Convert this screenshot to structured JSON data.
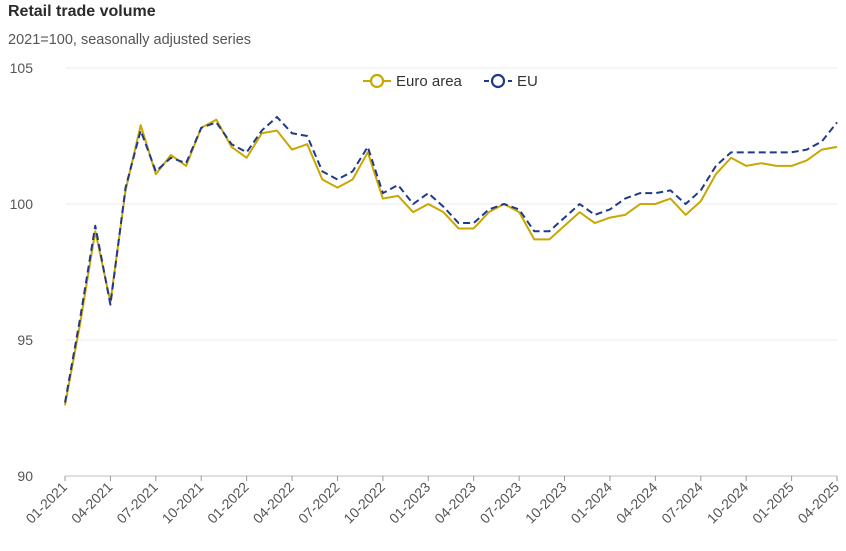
{
  "title": "Retail trade volume",
  "subtitle": "2021=100, seasonally adjusted series",
  "chart_data": {
    "type": "line",
    "title": "Retail trade volume",
    "subtitle": "2021=100, seasonally adjusted series",
    "ylim": [
      90,
      105
    ],
    "yticks": [
      90,
      95,
      100,
      105
    ],
    "grid": true,
    "legend_position": "top-center",
    "x_tick_labels": [
      "01-2021",
      "04-2021",
      "07-2021",
      "10-2021",
      "01-2022",
      "04-2022",
      "07-2022",
      "10-2022",
      "01-2023",
      "04-2023",
      "07-2023",
      "10-2023",
      "01-2024",
      "04-2024",
      "07-2024",
      "10-2024",
      "01-2025",
      "04-2025"
    ],
    "x": [
      "01-2021",
      "02-2021",
      "03-2021",
      "04-2021",
      "05-2021",
      "06-2021",
      "07-2021",
      "08-2021",
      "09-2021",
      "10-2021",
      "11-2021",
      "12-2021",
      "01-2022",
      "02-2022",
      "03-2022",
      "04-2022",
      "05-2022",
      "06-2022",
      "07-2022",
      "08-2022",
      "09-2022",
      "10-2022",
      "11-2022",
      "12-2022",
      "01-2023",
      "02-2023",
      "03-2023",
      "04-2023",
      "05-2023",
      "06-2023",
      "07-2023",
      "08-2023",
      "09-2023",
      "10-2023",
      "11-2023",
      "12-2023",
      "01-2024",
      "02-2024",
      "03-2024",
      "04-2024",
      "05-2024",
      "06-2024",
      "07-2024",
      "08-2024",
      "09-2024",
      "10-2024",
      "11-2024",
      "12-2024",
      "01-2025",
      "02-2025",
      "03-2025",
      "04-2025"
    ],
    "series": [
      {
        "name": "Euro area",
        "color": "#C9A700",
        "style": "solid",
        "values": [
          92.6,
          95.6,
          99.0,
          96.4,
          100.5,
          102.9,
          101.1,
          101.8,
          101.4,
          102.8,
          103.1,
          102.1,
          101.7,
          102.6,
          102.7,
          102.0,
          102.2,
          100.9,
          100.6,
          100.9,
          101.9,
          100.2,
          100.3,
          99.7,
          100.0,
          99.7,
          99.1,
          99.1,
          99.7,
          100.0,
          99.7,
          98.7,
          98.7,
          99.2,
          99.7,
          99.3,
          99.5,
          99.6,
          100.0,
          100.0,
          100.2,
          99.6,
          100.1,
          101.1,
          101.7,
          101.4,
          101.5,
          101.4,
          101.4,
          101.6,
          102.0,
          102.1
        ]
      },
      {
        "name": "EU",
        "color": "#1F3A8A",
        "style": "dashed",
        "values": [
          92.7,
          95.8,
          99.2,
          96.3,
          100.6,
          102.7,
          101.2,
          101.7,
          101.5,
          102.8,
          103.0,
          102.2,
          101.9,
          102.7,
          103.2,
          102.6,
          102.5,
          101.2,
          100.9,
          101.2,
          102.1,
          100.4,
          100.7,
          100.0,
          100.4,
          99.9,
          99.3,
          99.3,
          99.8,
          100.0,
          99.8,
          99.0,
          99.0,
          99.5,
          100.0,
          99.6,
          99.8,
          100.2,
          100.4,
          100.4,
          100.5,
          100.0,
          100.5,
          101.4,
          101.9,
          101.9,
          101.9,
          101.9,
          101.9,
          102.0,
          102.3,
          103.0
        ]
      }
    ]
  }
}
